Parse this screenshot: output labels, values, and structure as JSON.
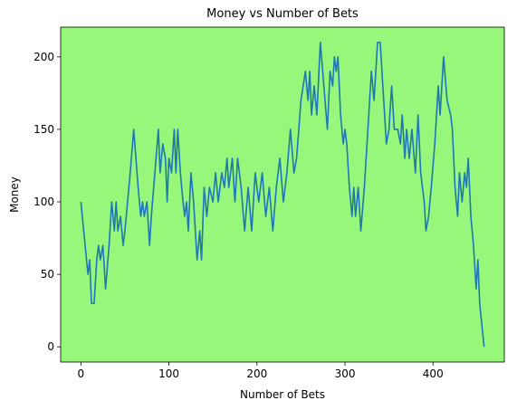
{
  "chart_data": {
    "type": "line",
    "title": "Money vs Number of Bets",
    "xlabel": "Number of Bets",
    "ylabel": "Money",
    "background": "#97f77a",
    "color": "#1f77b4",
    "x": [
      0,
      8,
      10,
      12,
      15,
      18,
      20,
      22,
      25,
      28,
      32,
      35,
      38,
      40,
      42,
      45,
      48,
      50,
      53,
      56,
      60,
      65,
      68,
      70,
      72,
      75,
      78,
      80,
      84,
      88,
      90,
      93,
      96,
      98,
      100,
      103,
      106,
      108,
      110,
      113,
      116,
      118,
      120,
      122,
      125,
      128,
      130,
      132,
      135,
      137,
      140,
      143,
      146,
      150,
      153,
      156,
      160,
      163,
      166,
      168,
      172,
      175,
      178,
      182,
      186,
      190,
      194,
      198,
      202,
      206,
      210,
      214,
      218,
      222,
      226,
      230,
      234,
      238,
      242,
      245,
      250,
      255,
      258,
      260,
      262,
      265,
      268,
      272,
      276,
      280,
      283,
      286,
      288,
      290,
      292,
      295,
      298,
      300,
      302,
      305,
      308,
      310,
      312,
      315,
      318,
      322,
      326,
      330,
      333,
      337,
      340,
      343,
      347,
      350,
      353,
      356,
      360,
      363,
      365,
      368,
      370,
      373,
      376,
      380,
      383,
      386,
      390,
      392,
      395,
      398,
      402,
      406,
      408,
      412,
      416,
      420,
      422,
      425,
      428,
      430,
      433,
      436,
      438,
      440,
      443,
      446,
      449,
      451,
      453,
      458
    ],
    "values": [
      100,
      50,
      60,
      30,
      30,
      60,
      70,
      60,
      70,
      40,
      70,
      100,
      80,
      100,
      80,
      90,
      70,
      80,
      100,
      120,
      150,
      110,
      90,
      100,
      90,
      100,
      70,
      90,
      120,
      150,
      120,
      140,
      130,
      100,
      130,
      120,
      150,
      120,
      150,
      120,
      100,
      90,
      100,
      80,
      120,
      100,
      80,
      60,
      80,
      60,
      110,
      90,
      110,
      100,
      120,
      100,
      120,
      110,
      130,
      110,
      130,
      100,
      130,
      110,
      80,
      110,
      80,
      120,
      100,
      120,
      90,
      110,
      80,
      110,
      130,
      100,
      120,
      150,
      120,
      130,
      170,
      190,
      170,
      190,
      160,
      180,
      160,
      210,
      180,
      150,
      190,
      180,
      200,
      190,
      200,
      160,
      140,
      150,
      140,
      110,
      90,
      110,
      90,
      110,
      80,
      110,
      150,
      190,
      170,
      210,
      210,
      180,
      140,
      150,
      180,
      150,
      150,
      140,
      160,
      130,
      150,
      130,
      150,
      120,
      160,
      120,
      100,
      80,
      90,
      110,
      140,
      180,
      160,
      200,
      170,
      160,
      150,
      110,
      90,
      120,
      100,
      120,
      110,
      130,
      90,
      70,
      40,
      60,
      30,
      0
    ],
    "xlim": [
      -23,
      481
    ],
    "ylim": [
      -10.5,
      220.5
    ],
    "xticks": [
      0,
      100,
      200,
      300,
      400
    ],
    "yticks": [
      0,
      50,
      100,
      150,
      200
    ]
  }
}
